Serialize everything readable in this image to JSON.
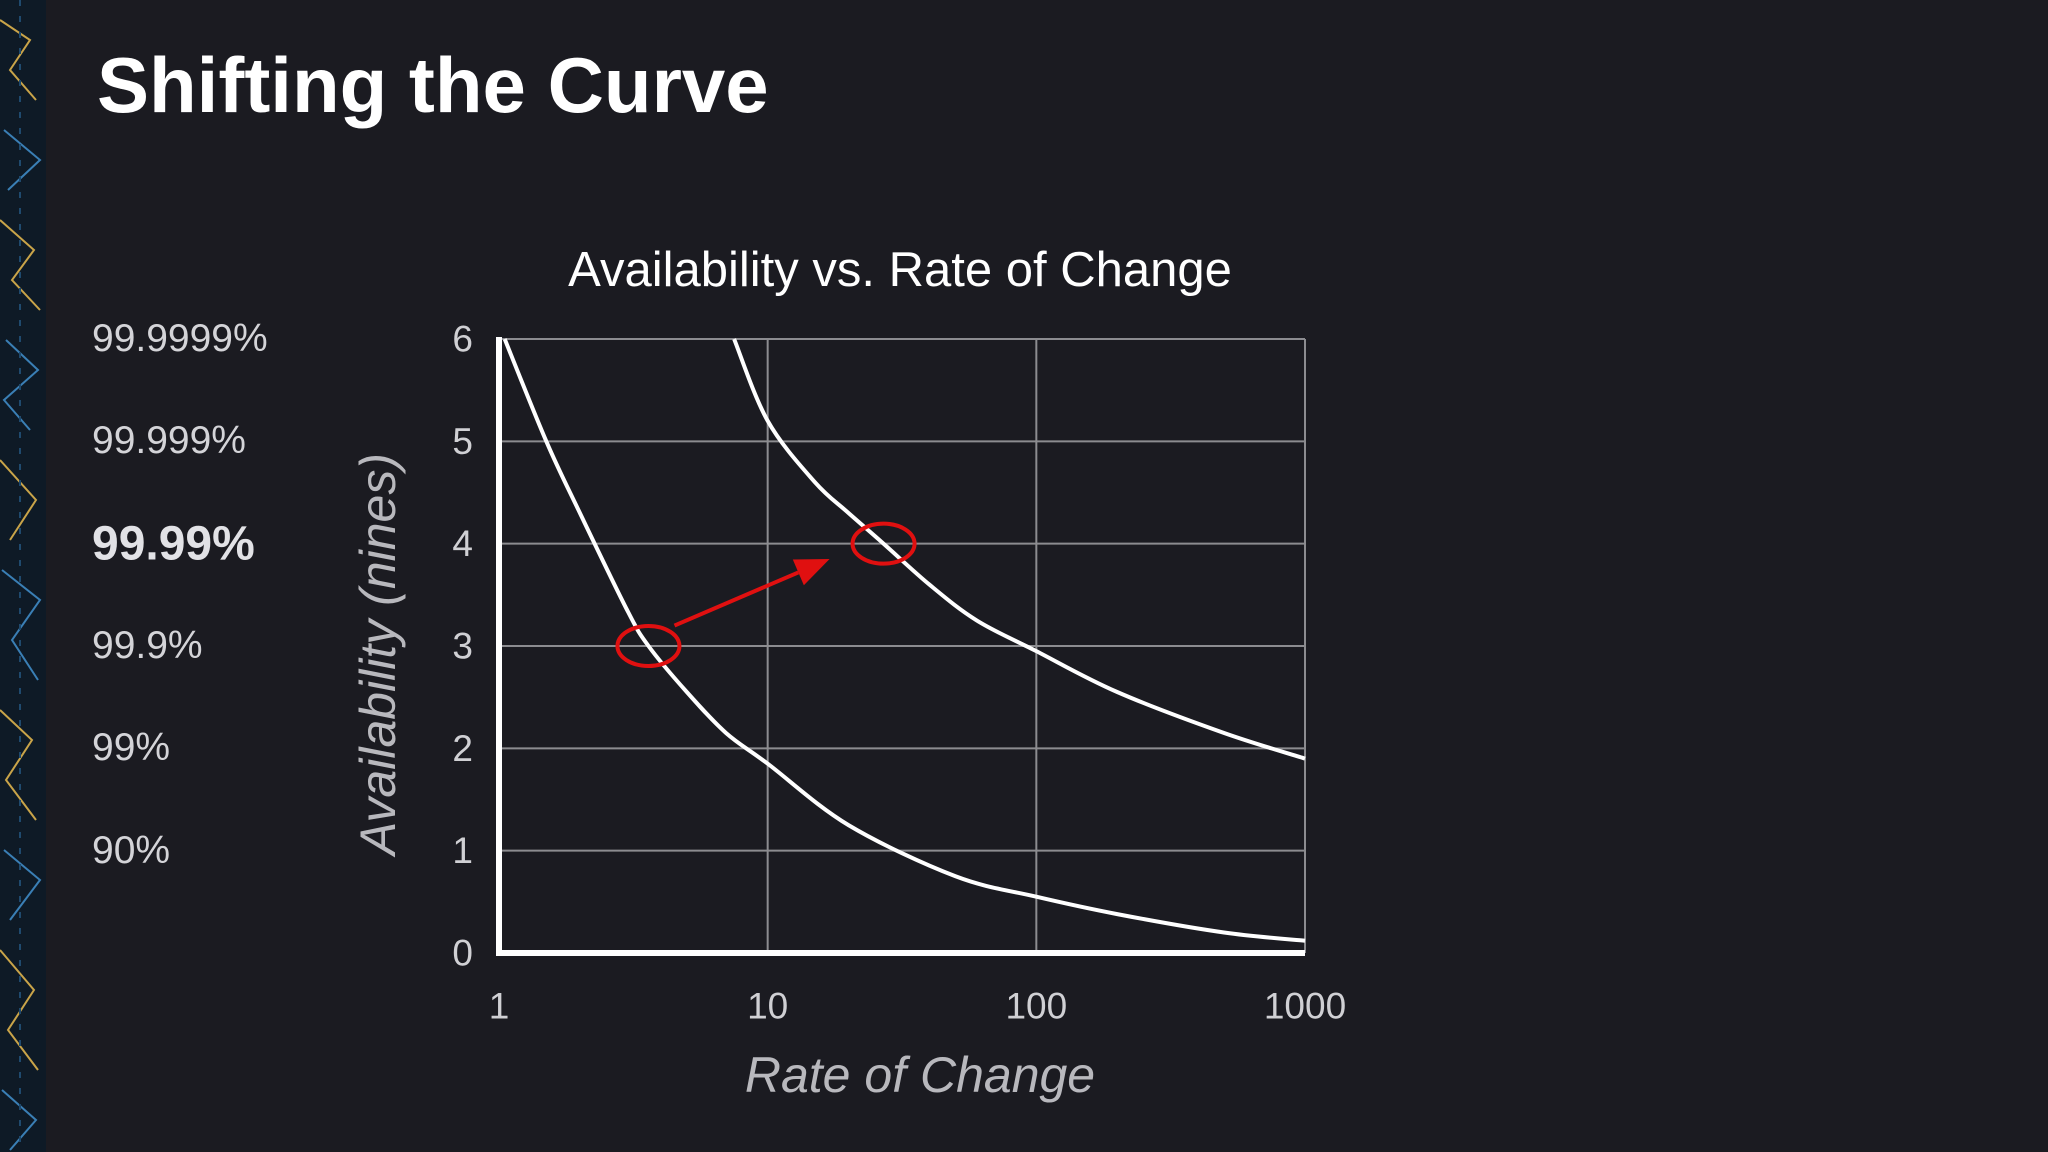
{
  "slide": {
    "title": "Shifting the Curve"
  },
  "nines_labels": [
    {
      "text": "99.9999%",
      "nines": 6
    },
    {
      "text": "99.999%",
      "nines": 5
    },
    {
      "text": "99.99%",
      "nines": 4,
      "highlight": true
    },
    {
      "text": "99.9%",
      "nines": 3
    },
    {
      "text": "99%",
      "nines": 2
    },
    {
      "text": "90%",
      "nines": 1
    }
  ],
  "chart_data": {
    "type": "line",
    "title": "Availability vs. Rate of Change",
    "xlabel": "Rate of Change",
    "ylabel": "Availability (nines)",
    "x_scale": "log",
    "xlim": [
      1,
      1000
    ],
    "ylim": [
      0,
      6
    ],
    "x_ticks": [
      "1",
      "10",
      "100",
      "1000"
    ],
    "y_ticks": [
      "0",
      "1",
      "2",
      "3",
      "4",
      "5",
      "6"
    ],
    "grid": true,
    "series": [
      {
        "color": "#ffffff",
        "x": [
          1.05,
          1.5,
          2,
          3,
          3.6,
          5,
          7,
          10,
          20,
          50,
          100,
          200,
          500,
          1000
        ],
        "y": [
          6.0,
          5.0,
          4.3,
          3.35,
          3.0,
          2.55,
          2.15,
          1.85,
          1.25,
          0.75,
          0.55,
          0.38,
          0.2,
          0.12
        ]
      },
      {
        "color": "#ffffff",
        "x": [
          7.5,
          10,
          15,
          20,
          27,
          40,
          60,
          100,
          200,
          500,
          1000
        ],
        "y": [
          6.0,
          5.2,
          4.6,
          4.3,
          4.0,
          3.6,
          3.25,
          2.95,
          2.55,
          2.15,
          1.9
        ]
      }
    ],
    "annotations": [
      {
        "type": "circle",
        "x": 3.6,
        "y": 3.0,
        "color": "#e01010"
      },
      {
        "type": "circle",
        "x": 27,
        "y": 4.0,
        "color": "#e01010"
      },
      {
        "type": "arrow",
        "from": [
          4.5,
          3.2
        ],
        "to": [
          17,
          3.85
        ],
        "color": "#e01010"
      }
    ]
  }
}
